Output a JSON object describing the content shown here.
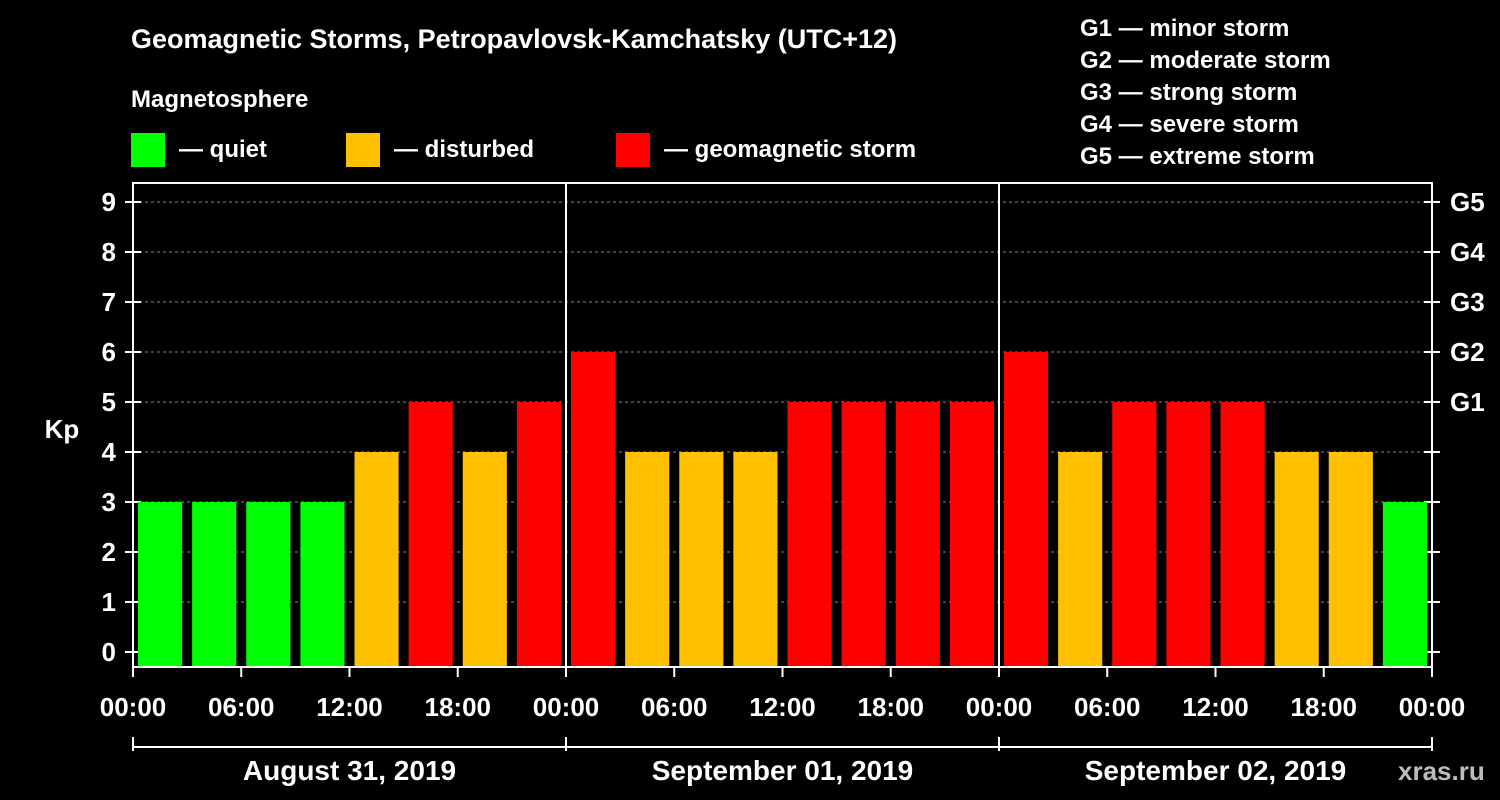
{
  "chart_data": {
    "type": "bar",
    "title": "Geomagnetic Storms, Petropavlovsk-Kamchatsky (UTC+12)",
    "ylabel": "Kp",
    "ylim": [
      0,
      9
    ],
    "y_ticks": [
      "0",
      "1",
      "2",
      "3",
      "4",
      "5",
      "6",
      "7",
      "8",
      "9"
    ],
    "right_axis": [
      {
        "kp": 5,
        "label": "G1"
      },
      {
        "kp": 6,
        "label": "G2"
      },
      {
        "kp": 7,
        "label": "G3"
      },
      {
        "kp": 8,
        "label": "G4"
      },
      {
        "kp": 9,
        "label": "G5"
      }
    ],
    "x_tick_labels": [
      "00:00",
      "06:00",
      "12:00",
      "18:00",
      "00:00",
      "06:00",
      "12:00",
      "18:00",
      "00:00",
      "06:00",
      "12:00",
      "18:00",
      "00:00"
    ],
    "days": [
      "August 31, 2019",
      "September 01, 2019",
      "September 02, 2019"
    ],
    "interval_hours": 3,
    "values": [
      3,
      3,
      3,
      3,
      4,
      5,
      4,
      5,
      6,
      4,
      4,
      4,
      5,
      5,
      5,
      5,
      6,
      4,
      5,
      5,
      5,
      4,
      4,
      3
    ],
    "categories": [
      "quiet",
      "quiet",
      "quiet",
      "quiet",
      "disturbed",
      "geomagnetic storm",
      "disturbed",
      "geomagnetic storm",
      "geomagnetic storm",
      "disturbed",
      "disturbed",
      "disturbed",
      "geomagnetic storm",
      "geomagnetic storm",
      "geomagnetic storm",
      "geomagnetic storm",
      "geomagnetic storm",
      "disturbed",
      "geomagnetic storm",
      "geomagnetic storm",
      "geomagnetic storm",
      "disturbed",
      "disturbed",
      "quiet"
    ],
    "colors": {
      "quiet": "#00ff00",
      "disturbed": "#ffc000",
      "geomagnetic storm": "#ff0000"
    },
    "grid": true
  },
  "magnetosphere": {
    "heading": "Magnetosphere",
    "legend": [
      {
        "label": "— quiet",
        "color": "#00ff00"
      },
      {
        "label": "— disturbed",
        "color": "#ffc000"
      },
      {
        "label": "— geomagnetic storm",
        "color": "#ff0000"
      }
    ]
  },
  "g_scale": [
    "G1 — minor storm",
    "G2 — moderate storm",
    "G3 — strong storm",
    "G4 — severe storm",
    "G5 — extreme storm"
  ],
  "watermark": "xras.ru"
}
